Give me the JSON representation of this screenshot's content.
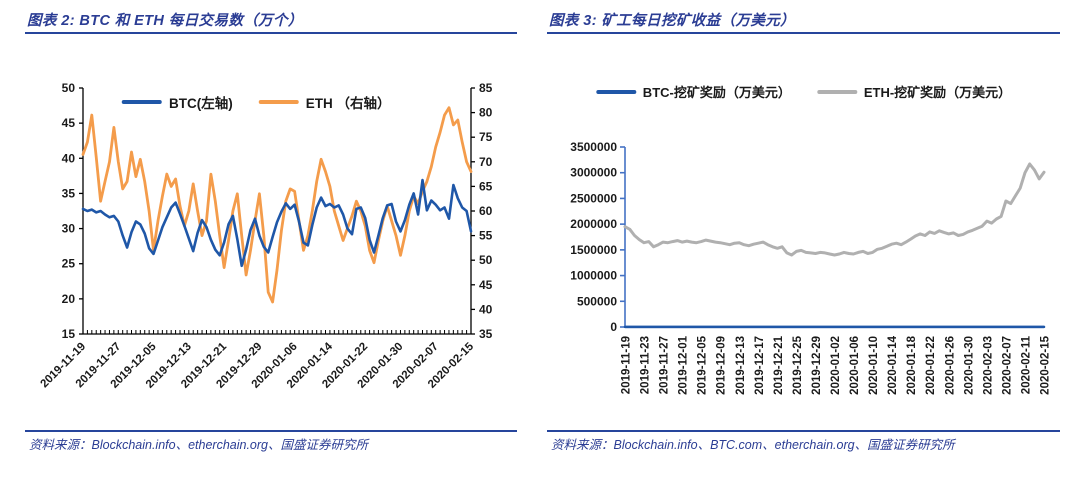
{
  "colors": {
    "text_blue": "#2b3d94",
    "rule_blue": "#26459c",
    "tick_color": "#1a1a1a",
    "btc_blue": "#1f57a8",
    "eth_orange": "#f49c4b",
    "eth_gray": "#b0b0b0",
    "axis_blue": "#4472c4"
  },
  "figure2": {
    "title": "图表 2: BTC 和 ETH 每日交易数（万个）",
    "source": "资料来源：Blockchain.info、etherchain.org、国盛证券研究所"
  },
  "figure3": {
    "title": "图表 3: 矿工每日挖矿收益（万美元）",
    "source": "资料来源：Blockchain.info、BTC.com、etherchain.org、国盛证券研究所"
  },
  "chart_data": [
    {
      "type": "line",
      "title": "图表 2: BTC 和 ETH 每日交易数（万个）",
      "n_points": 89,
      "x_tick_every": 8,
      "x_tick_labels": [
        "2019-11-19",
        "2019-11-27",
        "2019-12-05",
        "2019-12-13",
        "2019-12-21",
        "2019-12-29",
        "2020-01-06",
        "2020-01-14",
        "2020-01-22",
        "2020-01-30",
        "2020-02-07",
        "2020-02-15"
      ],
      "left_axis": {
        "min": 15,
        "max": 50,
        "step": 5
      },
      "right_axis": {
        "min": 35,
        "max": 85,
        "step": 5
      },
      "grid": false,
      "legend_position": "top-inside",
      "series": [
        {
          "name": "BTC(左轴)",
          "axis": "left",
          "color": "#1f57a8",
          "width": 2.6,
          "values": [
            32.8,
            32.5,
            32.7,
            32.3,
            32.5,
            32.0,
            31.6,
            31.8,
            31.0,
            29.0,
            27.3,
            29.5,
            31.0,
            30.6,
            29.3,
            27.2,
            26.4,
            28.3,
            30.2,
            31.6,
            33.0,
            33.7,
            32.1,
            30.4,
            28.6,
            26.8,
            29.4,
            31.2,
            30.2,
            28.4,
            27.0,
            26.2,
            28.0,
            30.6,
            31.8,
            28.5,
            24.7,
            27.0,
            29.8,
            31.4,
            29.0,
            27.4,
            26.6,
            28.8,
            30.9,
            32.4,
            33.6,
            32.8,
            33.4,
            31.0,
            28.0,
            27.6,
            30.5,
            33.0,
            34.4,
            33.2,
            33.5,
            33.0,
            33.3,
            32.0,
            30.0,
            29.2,
            32.8,
            33.0,
            31.5,
            28.4,
            26.6,
            29.0,
            31.5,
            33.3,
            33.5,
            31.0,
            29.6,
            31.2,
            33.4,
            35.0,
            32.0,
            36.9,
            32.6,
            34.0,
            33.4,
            32.6,
            33.0,
            31.4,
            36.2,
            34.3,
            33.0,
            32.5,
            29.6
          ]
        },
        {
          "name": "ETH （右轴）",
          "axis": "right",
          "color": "#f49c4b",
          "width": 2.8,
          "values": [
            71.5,
            74.0,
            79.5,
            71.0,
            62.0,
            66.0,
            70.0,
            77.0,
            70.0,
            64.5,
            66.0,
            72.0,
            67.0,
            70.5,
            66.0,
            60.0,
            52.0,
            58.0,
            63.0,
            67.5,
            65.0,
            66.5,
            61.0,
            57.0,
            60.0,
            65.5,
            60.0,
            55.0,
            58.0,
            67.5,
            62.0,
            55.0,
            48.5,
            54.0,
            60.0,
            63.5,
            55.0,
            47.0,
            52.0,
            58.0,
            63.5,
            55.0,
            43.5,
            41.5,
            48.0,
            56.0,
            62.0,
            64.5,
            64.0,
            58.0,
            52.0,
            55.0,
            60.0,
            66.0,
            70.5,
            68.0,
            65.0,
            60.0,
            57.0,
            54.0,
            56.5,
            59.0,
            62.0,
            60.0,
            57.0,
            52.0,
            49.5,
            54.0,
            58.0,
            61.0,
            58.0,
            55.0,
            51.0,
            55.0,
            60.0,
            63.0,
            61.5,
            64.0,
            66.0,
            69.0,
            73.0,
            76.0,
            79.5,
            81.0,
            77.5,
            78.5,
            74.0,
            70.0,
            68.0
          ]
        }
      ]
    },
    {
      "type": "line",
      "title": "图表 3: 矿工每日挖矿收益（万美元）",
      "n_points": 89,
      "x_tick_every": 4,
      "x_tick_labels": [
        "2019-11-19",
        "2019-11-23",
        "2019-11-27",
        "2019-12-01",
        "2019-12-05",
        "2019-12-09",
        "2019-12-13",
        "2019-12-17",
        "2019-12-21",
        "2019-12-25",
        "2019-12-29",
        "2020-01-02",
        "2020-01-06",
        "2020-01-10",
        "2020-01-14",
        "2020-01-18",
        "2020-01-22",
        "2020-01-26",
        "2020-01-30",
        "2020-02-03",
        "2020-02-07",
        "2020-02-11",
        "2020-02-15"
      ],
      "y_axis": {
        "min": 0,
        "max": 3500000,
        "step": 500000
      },
      "axis_color": "#4472c4",
      "grid": false,
      "legend_position": "top",
      "series": [
        {
          "name": "BTC-挖矿奖励（万美元）",
          "color": "#1f57a8",
          "width": 2.5,
          "visually_flat_at_zero": true,
          "constant": 1700,
          "values": []
        },
        {
          "name": "ETH-挖矿奖励（万美元）",
          "color": "#b0b0b0",
          "width": 3,
          "values": [
            1950000,
            1900000,
            1780000,
            1700000,
            1640000,
            1660000,
            1560000,
            1600000,
            1650000,
            1640000,
            1660000,
            1680000,
            1650000,
            1670000,
            1650000,
            1640000,
            1660000,
            1690000,
            1670000,
            1650000,
            1640000,
            1620000,
            1600000,
            1630000,
            1640000,
            1600000,
            1580000,
            1610000,
            1630000,
            1650000,
            1600000,
            1560000,
            1530000,
            1560000,
            1440000,
            1400000,
            1470000,
            1490000,
            1450000,
            1440000,
            1430000,
            1450000,
            1440000,
            1420000,
            1400000,
            1420000,
            1450000,
            1430000,
            1420000,
            1450000,
            1470000,
            1430000,
            1450000,
            1510000,
            1530000,
            1570000,
            1610000,
            1630000,
            1600000,
            1650000,
            1710000,
            1770000,
            1810000,
            1780000,
            1850000,
            1820000,
            1870000,
            1840000,
            1810000,
            1830000,
            1780000,
            1800000,
            1850000,
            1880000,
            1920000,
            1960000,
            2060000,
            2020000,
            2100000,
            2150000,
            2450000,
            2400000,
            2550000,
            2700000,
            3000000,
            3170000,
            3050000,
            2880000,
            3010000
          ]
        }
      ]
    }
  ]
}
